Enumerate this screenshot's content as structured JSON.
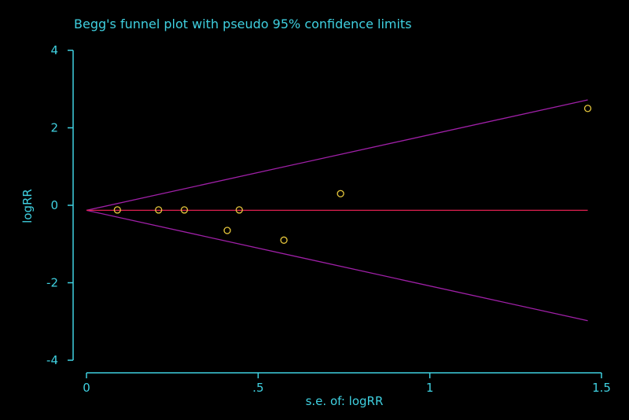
{
  "chart_data": {
    "type": "scatter",
    "title": "Begg's funnel plot with pseudo 95% confidence limits",
    "xlabel": "s.e. of: logRR",
    "ylabel": "logRR",
    "xlim": [
      0,
      1.5
    ],
    "ylim": [
      -4,
      4
    ],
    "x_tick_labels": [
      "0",
      ".5",
      "1",
      "1.5"
    ],
    "y_tick_labels": [
      "-4",
      "-2",
      "0",
      "2",
      "4"
    ],
    "x_ticks": [
      0,
      0.5,
      1,
      1.5
    ],
    "y_ticks": [
      -4,
      -2,
      0,
      2,
      4
    ],
    "grid": false,
    "pooled_estimate": -0.13,
    "confidence_limits": {
      "upper_end": 2.72,
      "lower_end": -2.98,
      "se_end": 1.46
    },
    "points": [
      {
        "x": 0.09,
        "y": -0.12
      },
      {
        "x": 0.21,
        "y": -0.12
      },
      {
        "x": 0.285,
        "y": -0.12
      },
      {
        "x": 0.41,
        "y": -0.65
      },
      {
        "x": 0.445,
        "y": -0.12
      },
      {
        "x": 0.575,
        "y": -0.9
      },
      {
        "x": 0.74,
        "y": 0.3
      },
      {
        "x": 1.46,
        "y": 2.5
      }
    ],
    "colors": {
      "axis": "#3fd0e0",
      "points": "#e8c83c",
      "estimate_line": "#e02050",
      "limit_lines": "#a020a8",
      "background": "#000000"
    }
  }
}
